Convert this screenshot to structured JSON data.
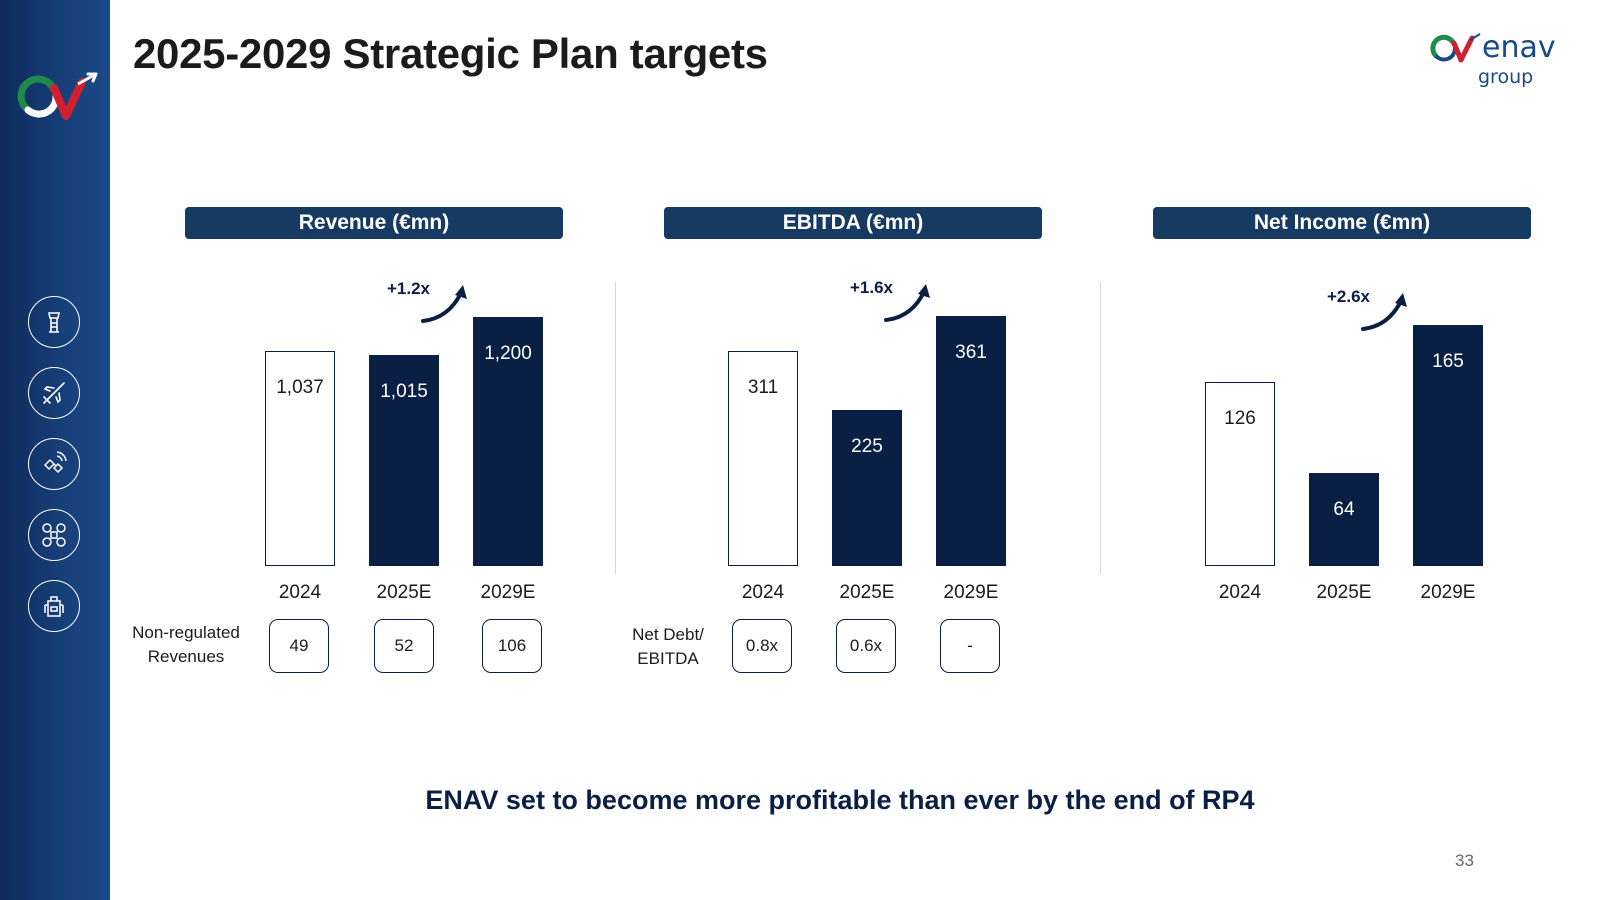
{
  "slide": {
    "title": "2025-2029 Strategic Plan targets",
    "tagline": "ENAV set to become more profitable than ever by the end of RP4",
    "page_number": "33",
    "brand": {
      "word": "enav",
      "sub": "group"
    }
  },
  "colors": {
    "navy": "#0a1f44",
    "header": "#173a63",
    "sidebar": "#17407a",
    "brand_red": "#d0202e",
    "brand_green": "#1e8a4c"
  },
  "sidebar_icons": [
    "control-tower-icon",
    "airplane-icon",
    "satellite-icon",
    "drone-icon",
    "backpack-icon"
  ],
  "chart_data": [
    {
      "type": "bar",
      "title": "Revenue (€mn)",
      "categories": [
        "2024",
        "2025E",
        "2029E"
      ],
      "values": [
        1037,
        1015,
        1200
      ],
      "labels": [
        "1,037",
        "1,015",
        "1,200"
      ],
      "styles": [
        "outline",
        "solid",
        "solid"
      ],
      "ylim": [
        0,
        1300
      ],
      "growth": "+1.2x",
      "extra_row": {
        "label": "Non-regulated Revenues",
        "values": [
          "49",
          "52",
          "106"
        ]
      }
    },
    {
      "type": "bar",
      "title": "EBITDA (€mn)",
      "categories": [
        "2024",
        "2025E",
        "2029E"
      ],
      "values": [
        311,
        225,
        361
      ],
      "labels": [
        "311",
        "225",
        "361"
      ],
      "styles": [
        "outline",
        "solid",
        "solid"
      ],
      "ylim": [
        0,
        390
      ],
      "growth": "+1.6x",
      "extra_row": {
        "label": "Net Debt/ EBITDA",
        "values": [
          "0.8x",
          "0.6x",
          "-"
        ]
      }
    },
    {
      "type": "bar",
      "title": "Net Income (€mn)",
      "categories": [
        "2024",
        "2025E",
        "2029E"
      ],
      "values": [
        126,
        64,
        165
      ],
      "labels": [
        "126",
        "64",
        "165"
      ],
      "styles": [
        "outline",
        "solid",
        "solid"
      ],
      "ylim": [
        0,
        185
      ],
      "growth": "+2.6x"
    }
  ]
}
